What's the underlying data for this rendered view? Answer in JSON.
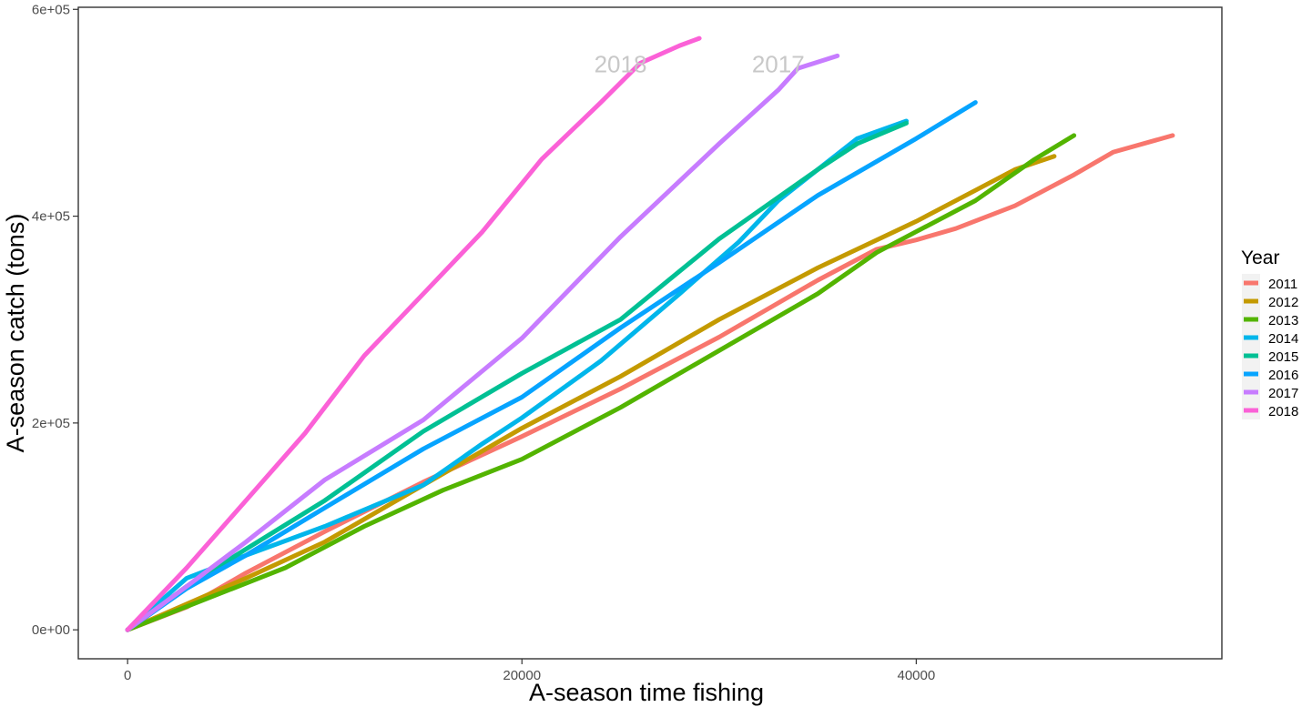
{
  "chart_data": {
    "type": "line",
    "title": "",
    "xlabel": "A-season time fishing",
    "ylabel": "A-season catch (tons)",
    "xlim": [
      -2500,
      55500
    ],
    "ylim": [
      -28000,
      602000
    ],
    "x_ticks": [
      0,
      20000,
      40000
    ],
    "x_tick_labels": [
      "0",
      "20000",
      "40000"
    ],
    "y_ticks": [
      0,
      200000,
      400000,
      600000
    ],
    "y_tick_labels": [
      "0e+00",
      "2e+05",
      "4e+05",
      "6e+05"
    ],
    "grid": false,
    "legend": {
      "title": "Year",
      "position": "right"
    },
    "annotations": [
      {
        "text": "2018",
        "x": 25000,
        "y": 548000,
        "color": "#c8c8c8"
      },
      {
        "text": "2017",
        "x": 33000,
        "y": 548000,
        "color": "#c8c8c8"
      }
    ],
    "series": [
      {
        "name": "2011",
        "color": "#F8766D",
        "x": [
          0,
          3000,
          6000,
          10000,
          15000,
          20000,
          25000,
          30000,
          35000,
          38000,
          40000,
          42000,
          45000,
          48000,
          50000,
          53000
        ],
        "y": [
          0,
          22000,
          55000,
          95000,
          143000,
          187000,
          233000,
          283000,
          338000,
          368000,
          377000,
          388000,
          410000,
          440000,
          462000,
          478000
        ]
      },
      {
        "name": "2012",
        "color": "#C49A00",
        "x": [
          0,
          3000,
          6000,
          10000,
          15000,
          20000,
          25000,
          30000,
          35000,
          40000,
          43000,
          45000,
          47000
        ],
        "y": [
          0,
          25000,
          50000,
          85000,
          140000,
          195000,
          245000,
          300000,
          350000,
          395000,
          425000,
          445000,
          458000
        ]
      },
      {
        "name": "2013",
        "color": "#53B400",
        "x": [
          0,
          4000,
          8000,
          12000,
          16000,
          20000,
          25000,
          30000,
          35000,
          38000,
          40000,
          43000,
          46000,
          48000
        ],
        "y": [
          0,
          30000,
          60000,
          100000,
          135000,
          165000,
          215000,
          270000,
          325000,
          365000,
          385000,
          415000,
          455000,
          478000
        ]
      },
      {
        "name": "2014",
        "color": "#00B6EB",
        "x": [
          0,
          3000,
          6000,
          10000,
          15000,
          18000,
          20000,
          24000,
          28000,
          31000,
          33000,
          35000,
          37000,
          39500
        ],
        "y": [
          0,
          50000,
          72000,
          100000,
          140000,
          180000,
          205000,
          260000,
          325000,
          375000,
          415000,
          445000,
          475000,
          492000
        ]
      },
      {
        "name": "2015",
        "color": "#00C094",
        "x": [
          0,
          3000,
          6000,
          10000,
          15000,
          20000,
          25000,
          30000,
          35000,
          37000,
          39500
        ],
        "y": [
          0,
          42000,
          78000,
          125000,
          192000,
          248000,
          300000,
          378000,
          445000,
          470000,
          490000
        ]
      },
      {
        "name": "2016",
        "color": "#06A4FF",
        "x": [
          0,
          3000,
          6000,
          10000,
          15000,
          20000,
          25000,
          30000,
          35000,
          40000,
          43000
        ],
        "y": [
          0,
          40000,
          72000,
          118000,
          175000,
          225000,
          292000,
          355000,
          420000,
          475000,
          510000
        ]
      },
      {
        "name": "2017",
        "color": "#C77CFF",
        "x": [
          0,
          3000,
          6000,
          10000,
          15000,
          20000,
          25000,
          30000,
          33000,
          34000,
          36000
        ],
        "y": [
          0,
          42000,
          85000,
          145000,
          203000,
          282000,
          380000,
          470000,
          522000,
          543000,
          555000
        ]
      },
      {
        "name": "2018",
        "color": "#FB61D7",
        "x": [
          0,
          3000,
          6000,
          9000,
          12000,
          15000,
          18000,
          21000,
          24000,
          26000,
          28000,
          29000
        ],
        "y": [
          0,
          60000,
          125000,
          190000,
          265000,
          325000,
          385000,
          455000,
          510000,
          548000,
          565000,
          572000
        ]
      }
    ]
  }
}
